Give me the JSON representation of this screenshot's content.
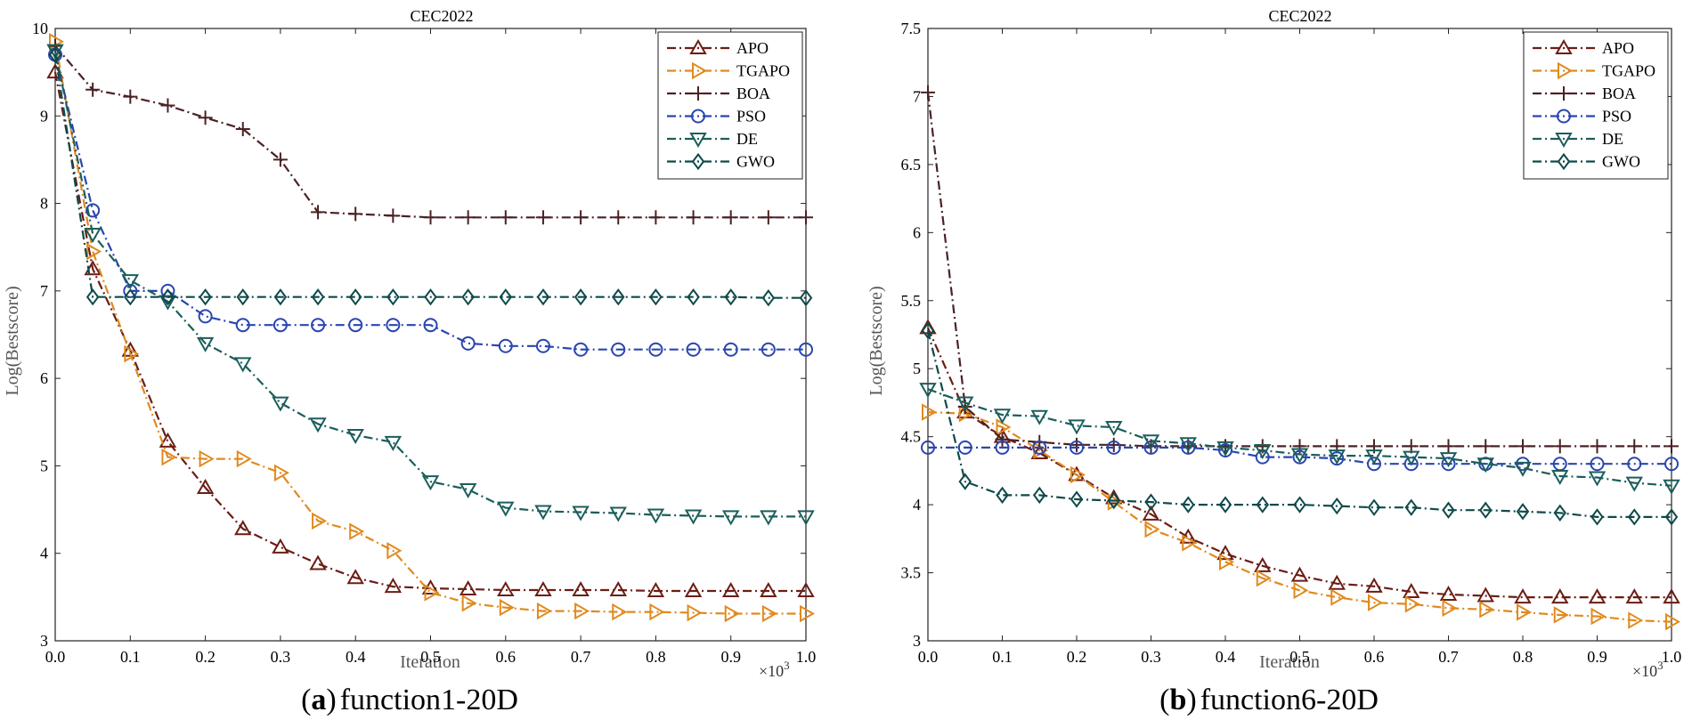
{
  "figure": {
    "x_multiplier_base": "×10",
    "x_multiplier_exp": "3"
  },
  "captions": [
    {
      "paren_open": "(",
      "label": "a",
      "paren_close": ")",
      "text": "function1-20D"
    },
    {
      "paren_open": "(",
      "label": "b",
      "paren_close": ")",
      "text": "function6-20D"
    }
  ],
  "chart_data": [
    {
      "type": "line",
      "title": "CEC2022",
      "xlabel": "Iteration",
      "ylabel": "Log(Bestscore)",
      "xlim": [
        0,
        1
      ],
      "ylim": [
        3,
        10
      ],
      "xticks": [
        "0.0",
        "0.1",
        "0.2",
        "0.3",
        "0.4",
        "0.5",
        "0.6",
        "0.7",
        "0.8",
        "0.9",
        "1.0"
      ],
      "yticks": [
        "3",
        "4",
        "5",
        "6",
        "7",
        "8",
        "9",
        "10"
      ],
      "legend_position": "top-right",
      "series": [
        {
          "name": "APO",
          "color": "#6b1d14",
          "marker": "triangle-up",
          "dash": "dashdot",
          "x": [
            0,
            0.05,
            0.1,
            0.15,
            0.2,
            0.25,
            0.3,
            0.35,
            0.4,
            0.45,
            0.5,
            0.55,
            0.6,
            0.65,
            0.7,
            0.75,
            0.8,
            0.85,
            0.9,
            0.95,
            1.0
          ],
          "y": [
            9.5,
            7.25,
            6.32,
            5.28,
            4.75,
            4.28,
            4.07,
            3.88,
            3.72,
            3.62,
            3.6,
            3.59,
            3.58,
            3.58,
            3.58,
            3.58,
            3.57,
            3.57,
            3.57,
            3.57,
            3.57
          ]
        },
        {
          "name": "TGAPO",
          "color": "#e08a1e",
          "marker": "triangle-right",
          "dash": "dashdot",
          "x": [
            0,
            0.05,
            0.1,
            0.15,
            0.2,
            0.25,
            0.3,
            0.35,
            0.4,
            0.45,
            0.5,
            0.55,
            0.6,
            0.65,
            0.7,
            0.75,
            0.8,
            0.85,
            0.9,
            0.95,
            1.0
          ],
          "y": [
            9.85,
            7.45,
            6.28,
            5.1,
            5.08,
            5.08,
            4.92,
            4.37,
            4.25,
            4.03,
            3.55,
            3.43,
            3.38,
            3.34,
            3.34,
            3.33,
            3.33,
            3.32,
            3.31,
            3.31,
            3.31
          ]
        },
        {
          "name": "BOA",
          "color": "#4a2224",
          "marker": "plus",
          "dash": "dashdot",
          "x": [
            0,
            0.05,
            0.1,
            0.15,
            0.2,
            0.25,
            0.3,
            0.35,
            0.4,
            0.45,
            0.5,
            0.55,
            0.6,
            0.65,
            0.7,
            0.75,
            0.8,
            0.85,
            0.9,
            0.95,
            1.0
          ],
          "y": [
            9.8,
            9.3,
            9.22,
            9.12,
            8.98,
            8.85,
            8.5,
            7.9,
            7.88,
            7.86,
            7.84,
            7.84,
            7.84,
            7.84,
            7.84,
            7.84,
            7.84,
            7.84,
            7.84,
            7.84,
            7.84
          ]
        },
        {
          "name": "PSO",
          "color": "#2a46b0",
          "marker": "circle",
          "dash": "dashdot",
          "x": [
            0,
            0.05,
            0.1,
            0.15,
            0.2,
            0.25,
            0.3,
            0.35,
            0.4,
            0.45,
            0.5,
            0.55,
            0.6,
            0.65,
            0.7,
            0.75,
            0.8,
            0.85,
            0.9,
            0.95,
            1.0
          ],
          "y": [
            9.7,
            7.92,
            7.0,
            7.0,
            6.71,
            6.61,
            6.61,
            6.61,
            6.61,
            6.61,
            6.61,
            6.4,
            6.37,
            6.37,
            6.33,
            6.33,
            6.33,
            6.33,
            6.33,
            6.33,
            6.33
          ]
        },
        {
          "name": "DE",
          "color": "#1b5e5b",
          "marker": "triangle-down",
          "dash": "dashdot",
          "x": [
            0,
            0.05,
            0.1,
            0.15,
            0.2,
            0.25,
            0.3,
            0.35,
            0.4,
            0.45,
            0.5,
            0.55,
            0.6,
            0.65,
            0.7,
            0.75,
            0.8,
            0.85,
            0.9,
            0.95,
            1.0
          ],
          "y": [
            9.75,
            7.65,
            7.12,
            6.88,
            6.4,
            6.17,
            5.72,
            5.48,
            5.35,
            5.27,
            4.82,
            4.73,
            4.52,
            4.48,
            4.47,
            4.46,
            4.44,
            4.43,
            4.42,
            4.42,
            4.42
          ]
        },
        {
          "name": "GWO",
          "color": "#0f4a4a",
          "marker": "diamond",
          "dash": "dashdot",
          "x": [
            0,
            0.05,
            0.1,
            0.15,
            0.2,
            0.25,
            0.3,
            0.35,
            0.4,
            0.45,
            0.5,
            0.55,
            0.6,
            0.65,
            0.7,
            0.75,
            0.8,
            0.85,
            0.9,
            0.95,
            1.0
          ],
          "y": [
            9.7,
            6.93,
            6.93,
            6.93,
            6.93,
            6.93,
            6.93,
            6.93,
            6.93,
            6.93,
            6.93,
            6.93,
            6.93,
            6.93,
            6.93,
            6.93,
            6.93,
            6.93,
            6.93,
            6.92,
            6.92
          ]
        }
      ]
    },
    {
      "type": "line",
      "title": "CEC2022",
      "xlabel": "Iteration",
      "ylabel": "Log(Bestscore)",
      "xlim": [
        0,
        1
      ],
      "ylim": [
        3,
        7.5
      ],
      "xticks": [
        "0.0",
        "0.1",
        "0.2",
        "0.3",
        "0.4",
        "0.5",
        "0.6",
        "0.7",
        "0.8",
        "0.9",
        "1.0"
      ],
      "yticks": [
        "3",
        "3.5",
        "4",
        "4.5",
        "5",
        "5.5",
        "6",
        "6.5",
        "7",
        "7.5"
      ],
      "legend_position": "top-right",
      "series": [
        {
          "name": "APO",
          "color": "#6b1d14",
          "marker": "triangle-up",
          "dash": "dashdot",
          "x": [
            0,
            0.05,
            0.1,
            0.15,
            0.2,
            0.25,
            0.3,
            0.35,
            0.4,
            0.45,
            0.5,
            0.55,
            0.6,
            0.65,
            0.7,
            0.75,
            0.8,
            0.85,
            0.9,
            0.95,
            1.0
          ],
          "y": [
            5.3,
            4.68,
            4.5,
            4.38,
            4.22,
            4.05,
            3.93,
            3.76,
            3.64,
            3.55,
            3.48,
            3.42,
            3.4,
            3.36,
            3.34,
            3.33,
            3.32,
            3.32,
            3.32,
            3.32,
            3.32
          ]
        },
        {
          "name": "TGAPO",
          "color": "#e08a1e",
          "marker": "triangle-right",
          "dash": "dashdot",
          "x": [
            0,
            0.05,
            0.1,
            0.15,
            0.2,
            0.25,
            0.3,
            0.35,
            0.4,
            0.45,
            0.5,
            0.55,
            0.6,
            0.65,
            0.7,
            0.75,
            0.8,
            0.85,
            0.9,
            0.95,
            1.0
          ],
          "y": [
            4.68,
            4.67,
            4.57,
            4.4,
            4.22,
            4.02,
            3.82,
            3.72,
            3.58,
            3.46,
            3.37,
            3.32,
            3.28,
            3.27,
            3.24,
            3.23,
            3.21,
            3.19,
            3.18,
            3.15,
            3.14
          ]
        },
        {
          "name": "BOA",
          "color": "#4a2224",
          "marker": "plus",
          "dash": "dashdot",
          "x": [
            0,
            0.05,
            0.1,
            0.15,
            0.2,
            0.25,
            0.3,
            0.35,
            0.4,
            0.45,
            0.5,
            0.55,
            0.6,
            0.65,
            0.7,
            0.75,
            0.8,
            0.85,
            0.9,
            0.95,
            1.0
          ],
          "y": [
            7.03,
            4.72,
            4.48,
            4.46,
            4.44,
            4.44,
            4.43,
            4.43,
            4.43,
            4.43,
            4.43,
            4.43,
            4.43,
            4.43,
            4.43,
            4.43,
            4.43,
            4.43,
            4.43,
            4.43,
            4.43
          ]
        },
        {
          "name": "PSO",
          "color": "#2a46b0",
          "marker": "circle",
          "dash": "dashdot",
          "x": [
            0,
            0.05,
            0.1,
            0.15,
            0.2,
            0.25,
            0.3,
            0.35,
            0.4,
            0.45,
            0.5,
            0.55,
            0.6,
            0.65,
            0.7,
            0.75,
            0.8,
            0.85,
            0.9,
            0.95,
            1.0
          ],
          "y": [
            4.42,
            4.42,
            4.42,
            4.42,
            4.42,
            4.42,
            4.42,
            4.42,
            4.4,
            4.35,
            4.35,
            4.34,
            4.3,
            4.3,
            4.3,
            4.3,
            4.3,
            4.3,
            4.3,
            4.3,
            4.3
          ]
        },
        {
          "name": "DE",
          "color": "#1b5e5b",
          "marker": "triangle-down",
          "dash": "dashdot",
          "x": [
            0,
            0.05,
            0.1,
            0.15,
            0.2,
            0.25,
            0.3,
            0.35,
            0.4,
            0.45,
            0.5,
            0.55,
            0.6,
            0.65,
            0.7,
            0.75,
            0.8,
            0.85,
            0.9,
            0.95,
            1.0
          ],
          "y": [
            4.85,
            4.75,
            4.66,
            4.65,
            4.58,
            4.57,
            4.47,
            4.45,
            4.42,
            4.4,
            4.37,
            4.36,
            4.36,
            4.35,
            4.34,
            4.3,
            4.27,
            4.21,
            4.2,
            4.16,
            4.14
          ]
        },
        {
          "name": "GWO",
          "color": "#0f4a4a",
          "marker": "diamond",
          "dash": "dashdot",
          "x": [
            0,
            0.05,
            0.1,
            0.15,
            0.2,
            0.25,
            0.3,
            0.35,
            0.4,
            0.45,
            0.5,
            0.55,
            0.6,
            0.65,
            0.7,
            0.75,
            0.8,
            0.85,
            0.9,
            0.95,
            1.0
          ],
          "y": [
            5.28,
            4.17,
            4.07,
            4.07,
            4.04,
            4.03,
            4.02,
            4.0,
            4.0,
            4.0,
            4.0,
            3.99,
            3.98,
            3.98,
            3.96,
            3.96,
            3.95,
            3.94,
            3.91,
            3.91,
            3.91
          ]
        }
      ]
    }
  ]
}
